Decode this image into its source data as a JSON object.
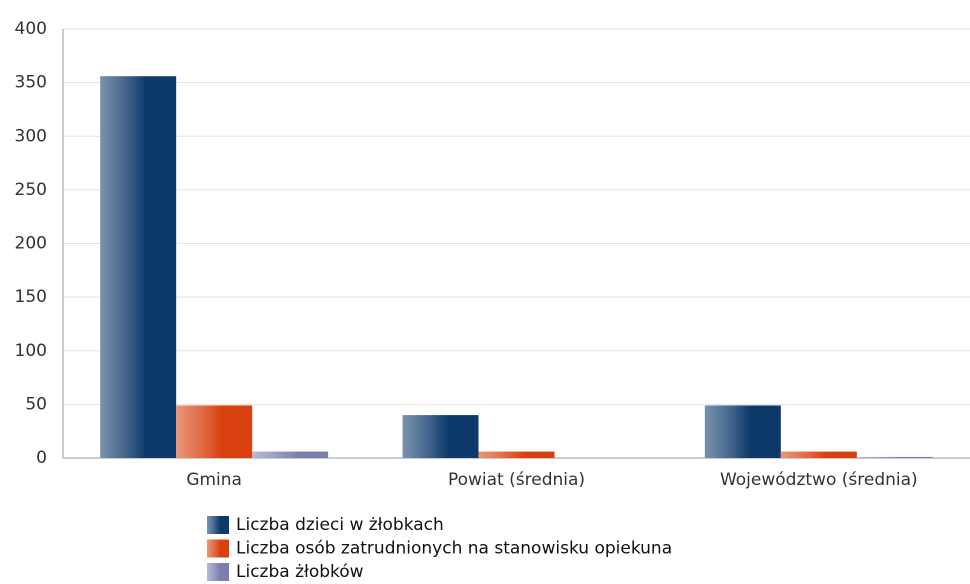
{
  "chart_data": {
    "type": "bar",
    "categories": [
      "Gmina",
      "Powiat (średnia)",
      "Województwo (średnia)"
    ],
    "series": [
      {
        "name": "Liczba dzieci w żłobkach",
        "color": "#0d3a6b",
        "values": [
          356,
          40,
          49
        ]
      },
      {
        "name": "Liczba osób zatrudnionych na stanowisku opiekuna",
        "color": "#d9400f",
        "values": [
          49,
          6,
          6
        ]
      },
      {
        "name": "Liczba żłobków",
        "color": "#7a7fb0",
        "values": [
          6,
          0,
          1
        ]
      }
    ],
    "ylim": [
      0,
      400
    ],
    "yticks": [
      0,
      50,
      100,
      150,
      200,
      250,
      300,
      350,
      400
    ],
    "grid": true
  }
}
